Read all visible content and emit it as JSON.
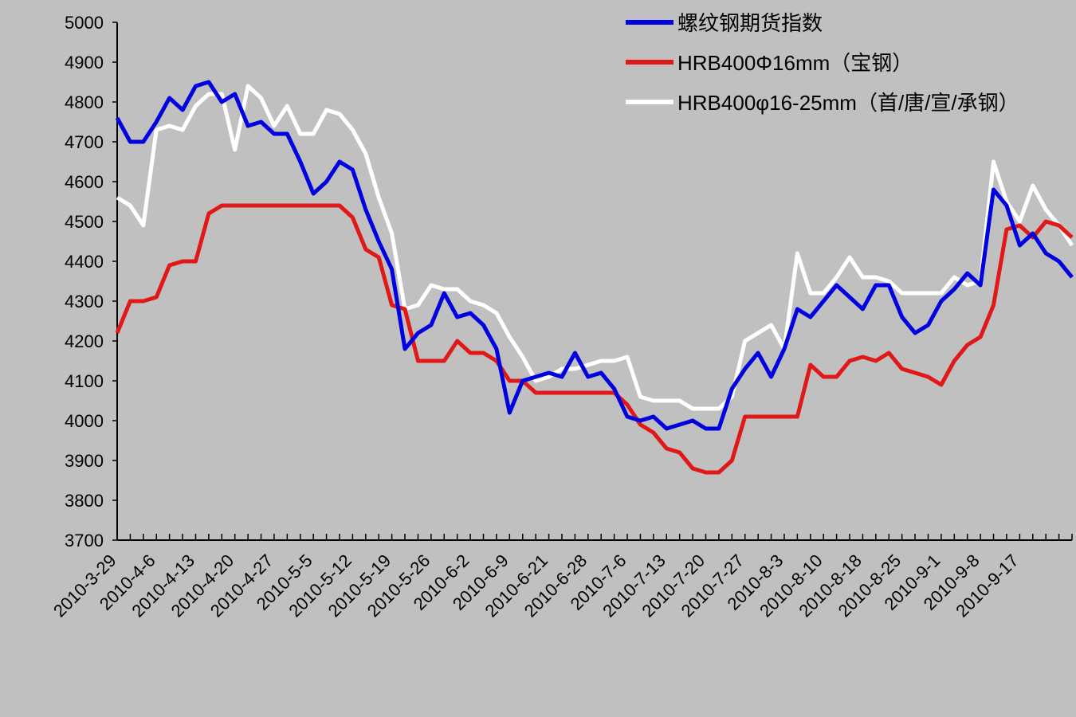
{
  "chart_data": {
    "type": "line",
    "categories": [
      "2010-3-29",
      null,
      null,
      "2010-4-6",
      null,
      null,
      "2010-4-13",
      null,
      null,
      "2010-4-20",
      null,
      null,
      "2010-4-27",
      null,
      null,
      "2010-5-5",
      null,
      null,
      "2010-5-12",
      null,
      null,
      "2010-5-19",
      null,
      null,
      "2010-5-26",
      null,
      null,
      "2010-6-2",
      null,
      null,
      "2010-6-9",
      null,
      null,
      "2010-6-21",
      null,
      null,
      "2010-6-28",
      null,
      null,
      "2010-7-6",
      null,
      null,
      "2010-7-13",
      null,
      null,
      "2010-7-20",
      null,
      null,
      "2010-7-27",
      null,
      null,
      "2010-8-3",
      null,
      null,
      "2010-8-10",
      null,
      null,
      "2010-8-18",
      null,
      null,
      "2010-8-25",
      null,
      null,
      "2010-9-1",
      null,
      null,
      "2010-9-8",
      null,
      null,
      "2010-9-17",
      null,
      null,
      null,
      null
    ],
    "series": [
      {
        "name": "螺纹钢期货指数",
        "color": "#0000e0",
        "values": [
          4760,
          4700,
          4700,
          4750,
          4810,
          4780,
          4840,
          4850,
          4800,
          4820,
          4740,
          4750,
          4720,
          4720,
          4650,
          4570,
          4600,
          4650,
          4630,
          4530,
          4450,
          4380,
          4180,
          4220,
          4240,
          4320,
          4260,
          4270,
          4240,
          4180,
          4020,
          4100,
          4110,
          4120,
          4110,
          4170,
          4110,
          4120,
          4080,
          4010,
          4000,
          4010,
          3980,
          3990,
          4000,
          3980,
          3980,
          4080,
          4130,
          4170,
          4110,
          4180,
          4280,
          4260,
          4300,
          4340,
          4310,
          4280,
          4340,
          4340,
          4260,
          4220,
          4240,
          4300,
          4330,
          4370,
          4340,
          4580,
          4540,
          4440,
          4470,
          4420,
          4400,
          4360
        ]
      },
      {
        "name": "HRB400Φ16mm（宝钢）",
        "color": "#e01818",
        "values": [
          4220,
          4300,
          4300,
          4310,
          4390,
          4400,
          4400,
          4520,
          4540,
          4540,
          4540,
          4540,
          4540,
          4540,
          4540,
          4540,
          4540,
          4540,
          4510,
          4430,
          4410,
          4290,
          4280,
          4150,
          4150,
          4150,
          4200,
          4170,
          4170,
          4150,
          4100,
          4100,
          4070,
          4070,
          4070,
          4070,
          4070,
          4070,
          4070,
          4040,
          3990,
          3970,
          3930,
          3920,
          3880,
          3870,
          3870,
          3900,
          4010,
          4010,
          4010,
          4010,
          4010,
          4140,
          4110,
          4110,
          4150,
          4160,
          4150,
          4170,
          4130,
          4120,
          4110,
          4090,
          4150,
          4190,
          4210,
          4290,
          4480,
          4490,
          4460,
          4500,
          4490,
          4460
        ]
      },
      {
        "name": "HRB400φ16-25mm（首/唐/宣/承钢）",
        "color": "#ffffff",
        "values": [
          4560,
          4540,
          4490,
          4730,
          4740,
          4730,
          4790,
          4820,
          4820,
          4680,
          4840,
          4810,
          4740,
          4790,
          4720,
          4720,
          4780,
          4770,
          4730,
          4670,
          4560,
          4470,
          4280,
          4290,
          4340,
          4330,
          4330,
          4300,
          4290,
          4270,
          4210,
          4160,
          4100,
          4110,
          4130,
          4130,
          4140,
          4150,
          4150,
          4160,
          4060,
          4050,
          4050,
          4050,
          4030,
          4030,
          4030,
          4060,
          4200,
          4220,
          4240,
          4180,
          4420,
          4320,
          4320,
          4360,
          4410,
          4360,
          4360,
          4350,
          4320,
          4320,
          4320,
          4320,
          4360,
          4340,
          4350,
          4650,
          4550,
          4500,
          4590,
          4530,
          4490,
          4440
        ]
      }
    ],
    "ylim": [
      3700,
      5000
    ],
    "yticks": [
      3700,
      3800,
      3900,
      4000,
      4100,
      4200,
      4300,
      4400,
      4500,
      4600,
      4700,
      4800,
      4900,
      5000
    ],
    "grid": false,
    "legend": "top-right"
  }
}
